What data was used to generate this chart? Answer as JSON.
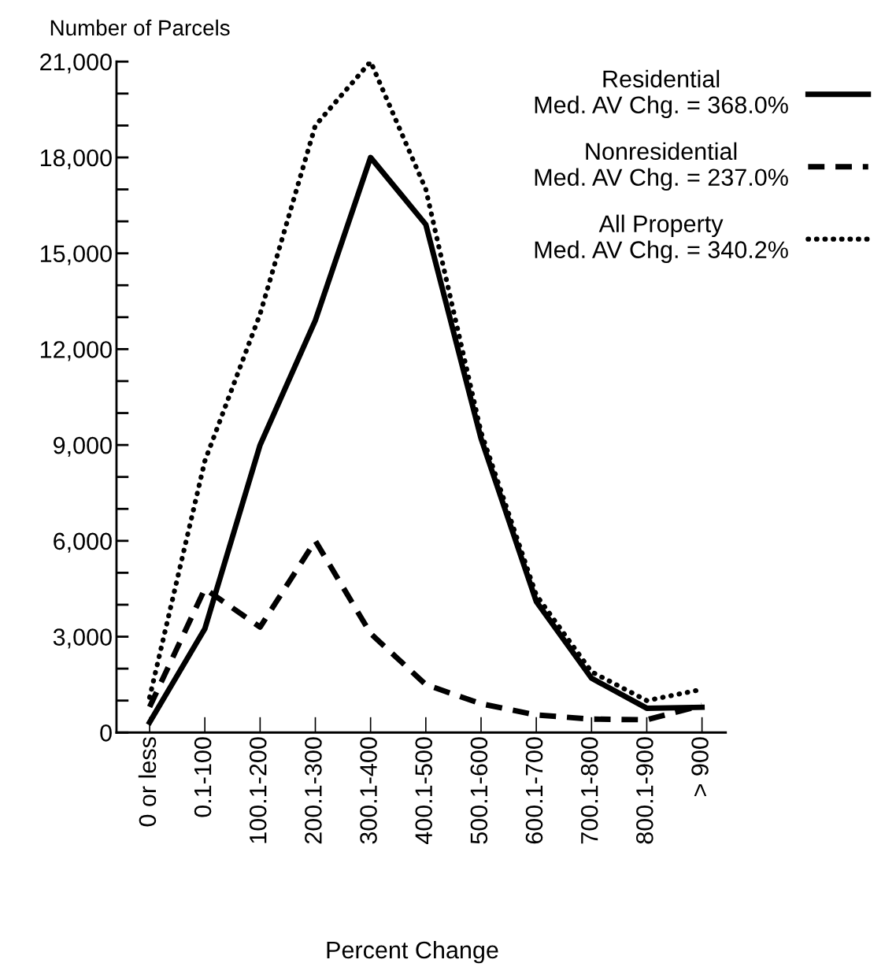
{
  "chart_data": {
    "type": "line",
    "ylabel": "Number of Parcels",
    "xlabel": "Percent Change",
    "categories": [
      "0 or less",
      "0.1-100",
      "100.1-200",
      "200.1-300",
      "300.1-400",
      "400.1-500",
      "500.1-600",
      "600.1-700",
      "700.1-800",
      "800.1-900",
      "> 900"
    ],
    "series": [
      {
        "name": "Residential\nMed. AV Chg. = 368.0%",
        "color": "#000000",
        "line_style": "solid",
        "values": [
          320,
          3250,
          9000,
          12900,
          18000,
          15900,
          9200,
          4100,
          1700,
          760,
          790
        ]
      },
      {
        "name": "Nonresidential\nMed. AV Chg. = 237.0%",
        "color": "#000000",
        "line_style": "dashed",
        "values": [
          800,
          4500,
          3300,
          6000,
          3100,
          1500,
          900,
          550,
          420,
          400,
          850
        ]
      },
      {
        "name": "All Property\nMed. AV Chg. = 340.2%",
        "color": "#000000",
        "line_style": "dotted",
        "values": [
          1100,
          8500,
          13100,
          19000,
          21000,
          17000,
          9400,
          4300,
          1900,
          1000,
          1350
        ]
      }
    ],
    "ylim": [
      0,
      21000
    ],
    "yticks": [
      {
        "value": 0,
        "label": "0"
      },
      {
        "value": 1000,
        "label": null
      },
      {
        "value": 2000,
        "label": null
      },
      {
        "value": 3000,
        "label": "3,000"
      },
      {
        "value": 4000,
        "label": null
      },
      {
        "value": 5000,
        "label": null
      },
      {
        "value": 6000,
        "label": "6,000"
      },
      {
        "value": 7000,
        "label": null
      },
      {
        "value": 8000,
        "label": null
      },
      {
        "value": 9000,
        "label": "9,000"
      },
      {
        "value": 10000,
        "label": null
      },
      {
        "value": 11000,
        "label": null
      },
      {
        "value": 12000,
        "label": "12,000"
      },
      {
        "value": 13000,
        "label": null
      },
      {
        "value": 14000,
        "label": null
      },
      {
        "value": 15000,
        "label": "15,000"
      },
      {
        "value": 16000,
        "label": null
      },
      {
        "value": 17000,
        "label": null
      },
      {
        "value": 18000,
        "label": "18,000"
      },
      {
        "value": 19000,
        "label": null
      },
      {
        "value": 20000,
        "label": null
      },
      {
        "value": 21000,
        "label": "21,000"
      }
    ],
    "grid": false,
    "legend": "top right",
    "marker": "none"
  }
}
